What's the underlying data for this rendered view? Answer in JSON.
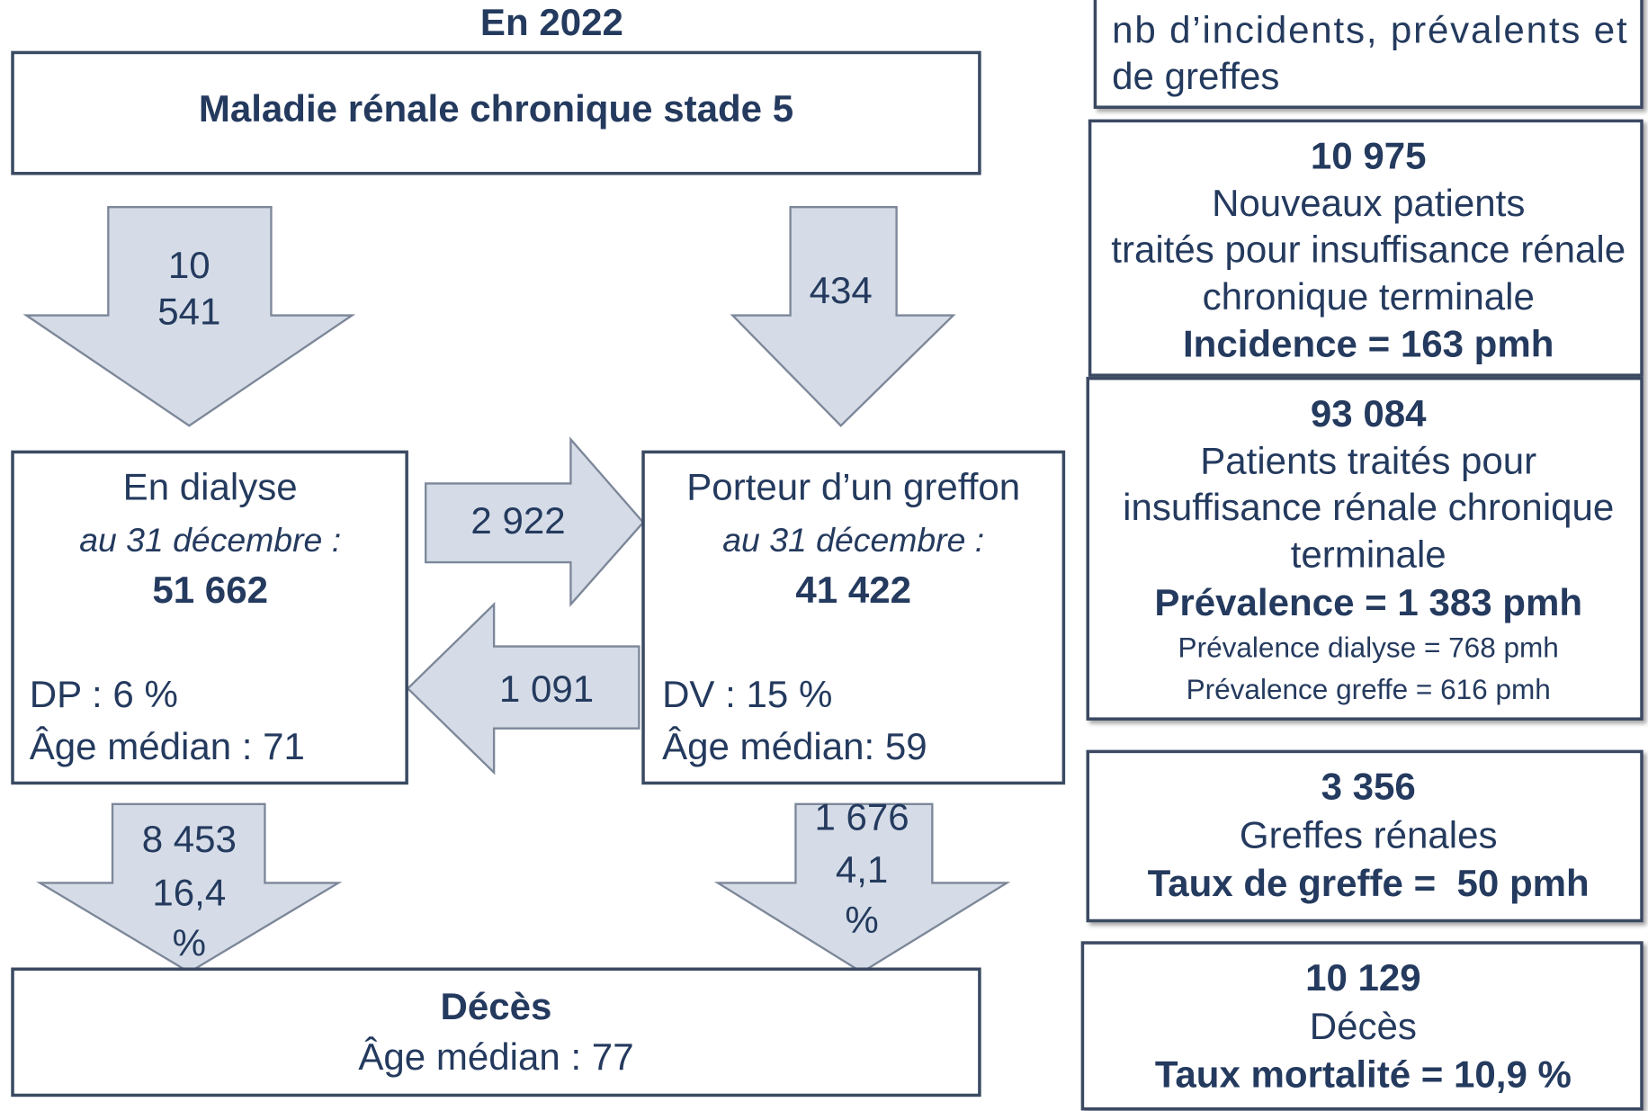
{
  "title": "En 2022",
  "stage_box": {
    "label": "Maladie rénale chronique stade 5"
  },
  "arrows": {
    "to_dialysis": [
      "10",
      "541"
    ],
    "to_graft": "434",
    "dialysis_to_graft": "2 922",
    "graft_to_dialysis": "1 091",
    "dialysis_deaths": [
      "8 453",
      "16,4",
      "%"
    ],
    "graft_deaths": [
      "1 676",
      "4,1",
      "%"
    ]
  },
  "dialysis": {
    "title": "En dialyse",
    "date": "au 31 décembre :",
    "count": "51 662",
    "detail": "DP : 6 %",
    "age": "Âge médian : 71"
  },
  "graft": {
    "title": "Porteur d’un greffon",
    "date": "au 31 décembre :",
    "count": "41 422",
    "detail": "DV : 15 %",
    "age": "Âge médian: 59"
  },
  "deaths_box": {
    "title": "Décès",
    "age": "Âge médian : 77"
  },
  "side": {
    "intro": [
      "nb d’incidents, prévalents et",
      "de greffes"
    ],
    "incidence": [
      "10 975",
      "Nouveaux patients",
      "traités pour insuffisance rénale",
      "chronique terminale",
      "Incidence = 163 pmh"
    ],
    "prevalence": [
      "93 084",
      "Patients traités pour",
      "insuffisance rénale chronique",
      "terminale",
      "Prévalence = 1 383 pmh",
      "Prévalence dialyse = 768 pmh",
      "Prévalence greffe = 616 pmh"
    ],
    "grafts": [
      "3 356",
      "Greffes rénales",
      "Taux de greffe =  50 pmh"
    ],
    "deaths": [
      "10 129",
      "Décès",
      "Taux mortalité = 10,9 %"
    ]
  }
}
